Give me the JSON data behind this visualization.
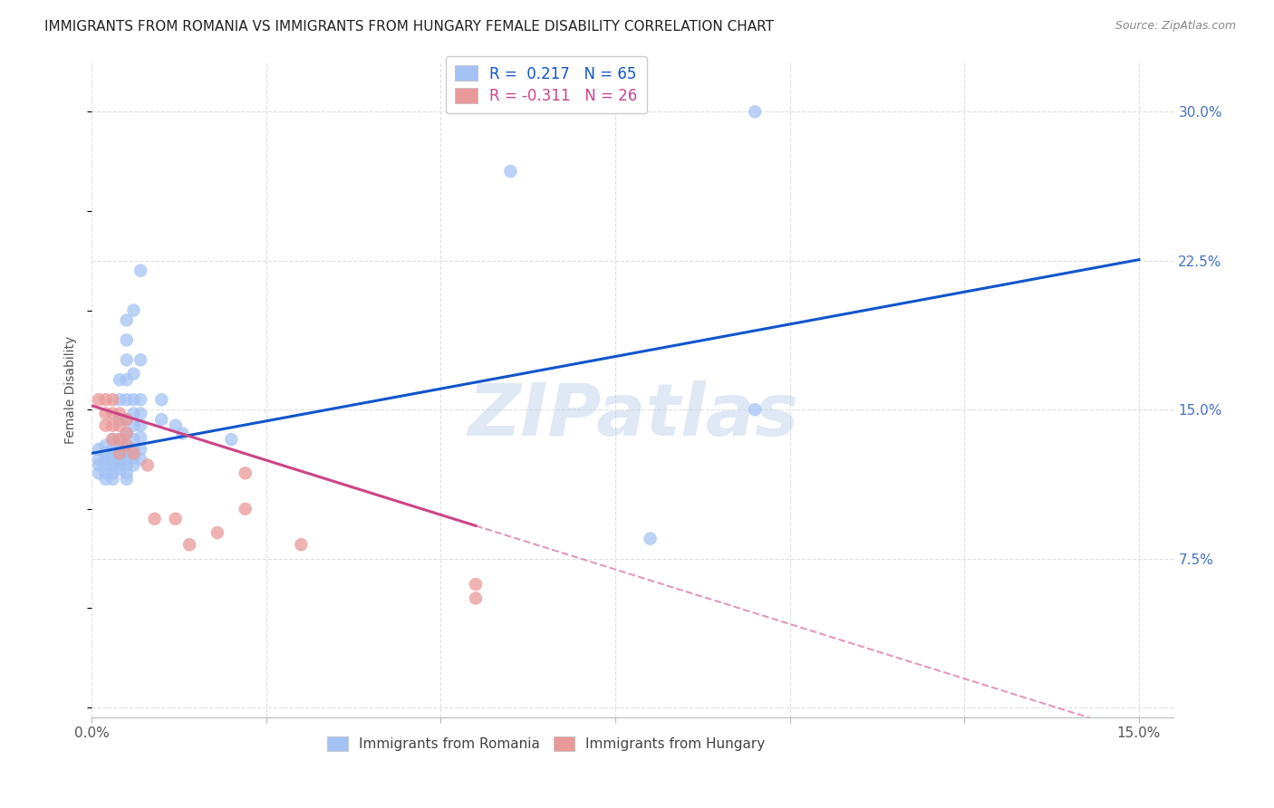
{
  "title": "IMMIGRANTS FROM ROMANIA VS IMMIGRANTS FROM HUNGARY FEMALE DISABILITY CORRELATION CHART",
  "source": "Source: ZipAtlas.com",
  "ylabel": "Female Disability",
  "y_ticks": [
    0.0,
    0.075,
    0.15,
    0.225,
    0.3
  ],
  "y_tick_labels": [
    "",
    "7.5%",
    "15.0%",
    "22.5%",
    "30.0%"
  ],
  "x_ticks": [
    0.0,
    0.025,
    0.05,
    0.075,
    0.1,
    0.125,
    0.15
  ],
  "x_tick_labels": [
    "0.0%",
    "",
    "",
    "",
    "",
    "",
    "15.0%"
  ],
  "xlim": [
    0.0,
    0.155
  ],
  "ylim": [
    -0.005,
    0.325
  ],
  "romania_color": "#a4c2f4",
  "hungary_color": "#ea9999",
  "romania_R": 0.217,
  "romania_N": 65,
  "hungary_R": -0.311,
  "hungary_N": 26,
  "watermark": "ZIPatlas",
  "romania_points": [
    [
      0.001,
      0.13
    ],
    [
      0.001,
      0.125
    ],
    [
      0.001,
      0.122
    ],
    [
      0.001,
      0.118
    ],
    [
      0.002,
      0.132
    ],
    [
      0.002,
      0.128
    ],
    [
      0.002,
      0.125
    ],
    [
      0.002,
      0.122
    ],
    [
      0.002,
      0.118
    ],
    [
      0.002,
      0.115
    ],
    [
      0.003,
      0.135
    ],
    [
      0.003,
      0.13
    ],
    [
      0.003,
      0.128
    ],
    [
      0.003,
      0.125
    ],
    [
      0.003,
      0.122
    ],
    [
      0.003,
      0.118
    ],
    [
      0.003,
      0.115
    ],
    [
      0.004,
      0.165
    ],
    [
      0.004,
      0.155
    ],
    [
      0.004,
      0.145
    ],
    [
      0.004,
      0.135
    ],
    [
      0.004,
      0.13
    ],
    [
      0.004,
      0.128
    ],
    [
      0.004,
      0.125
    ],
    [
      0.004,
      0.122
    ],
    [
      0.004,
      0.12
    ],
    [
      0.005,
      0.195
    ],
    [
      0.005,
      0.185
    ],
    [
      0.005,
      0.175
    ],
    [
      0.005,
      0.165
    ],
    [
      0.005,
      0.155
    ],
    [
      0.005,
      0.145
    ],
    [
      0.005,
      0.138
    ],
    [
      0.005,
      0.132
    ],
    [
      0.005,
      0.128
    ],
    [
      0.005,
      0.125
    ],
    [
      0.005,
      0.122
    ],
    [
      0.005,
      0.118
    ],
    [
      0.005,
      0.115
    ],
    [
      0.006,
      0.2
    ],
    [
      0.006,
      0.168
    ],
    [
      0.006,
      0.155
    ],
    [
      0.006,
      0.148
    ],
    [
      0.006,
      0.142
    ],
    [
      0.006,
      0.135
    ],
    [
      0.006,
      0.13
    ],
    [
      0.006,
      0.126
    ],
    [
      0.006,
      0.122
    ],
    [
      0.007,
      0.22
    ],
    [
      0.007,
      0.175
    ],
    [
      0.007,
      0.155
    ],
    [
      0.007,
      0.148
    ],
    [
      0.007,
      0.142
    ],
    [
      0.007,
      0.136
    ],
    [
      0.007,
      0.13
    ],
    [
      0.007,
      0.125
    ],
    [
      0.01,
      0.155
    ],
    [
      0.01,
      0.145
    ],
    [
      0.012,
      0.142
    ],
    [
      0.013,
      0.138
    ],
    [
      0.02,
      0.135
    ],
    [
      0.06,
      0.27
    ],
    [
      0.08,
      0.085
    ],
    [
      0.095,
      0.3
    ],
    [
      0.095,
      0.15
    ]
  ],
  "hungary_points": [
    [
      0.001,
      0.155
    ],
    [
      0.002,
      0.155
    ],
    [
      0.002,
      0.148
    ],
    [
      0.002,
      0.142
    ],
    [
      0.003,
      0.155
    ],
    [
      0.003,
      0.148
    ],
    [
      0.003,
      0.142
    ],
    [
      0.003,
      0.135
    ],
    [
      0.004,
      0.148
    ],
    [
      0.004,
      0.142
    ],
    [
      0.004,
      0.135
    ],
    [
      0.004,
      0.128
    ],
    [
      0.005,
      0.145
    ],
    [
      0.005,
      0.138
    ],
    [
      0.005,
      0.132
    ],
    [
      0.006,
      0.128
    ],
    [
      0.008,
      0.122
    ],
    [
      0.009,
      0.095
    ],
    [
      0.012,
      0.095
    ],
    [
      0.014,
      0.082
    ],
    [
      0.018,
      0.088
    ],
    [
      0.022,
      0.118
    ],
    [
      0.022,
      0.1
    ],
    [
      0.03,
      0.082
    ],
    [
      0.055,
      0.062
    ],
    [
      0.055,
      0.055
    ]
  ],
  "romania_line_color": "#1155cc",
  "hungary_line_color": "#cc4488",
  "grid_color": "#e0e0e0",
  "background_color": "#ffffff",
  "tick_color": "#4472c4",
  "title_fontsize": 11,
  "source_fontsize": 9,
  "watermark_color": "#b8cce8",
  "watermark_alpha": 0.45,
  "romania_line_intercept": 0.128,
  "romania_line_slope": 0.65,
  "hungary_line_intercept": 0.152,
  "hungary_line_slope": -1.1
}
